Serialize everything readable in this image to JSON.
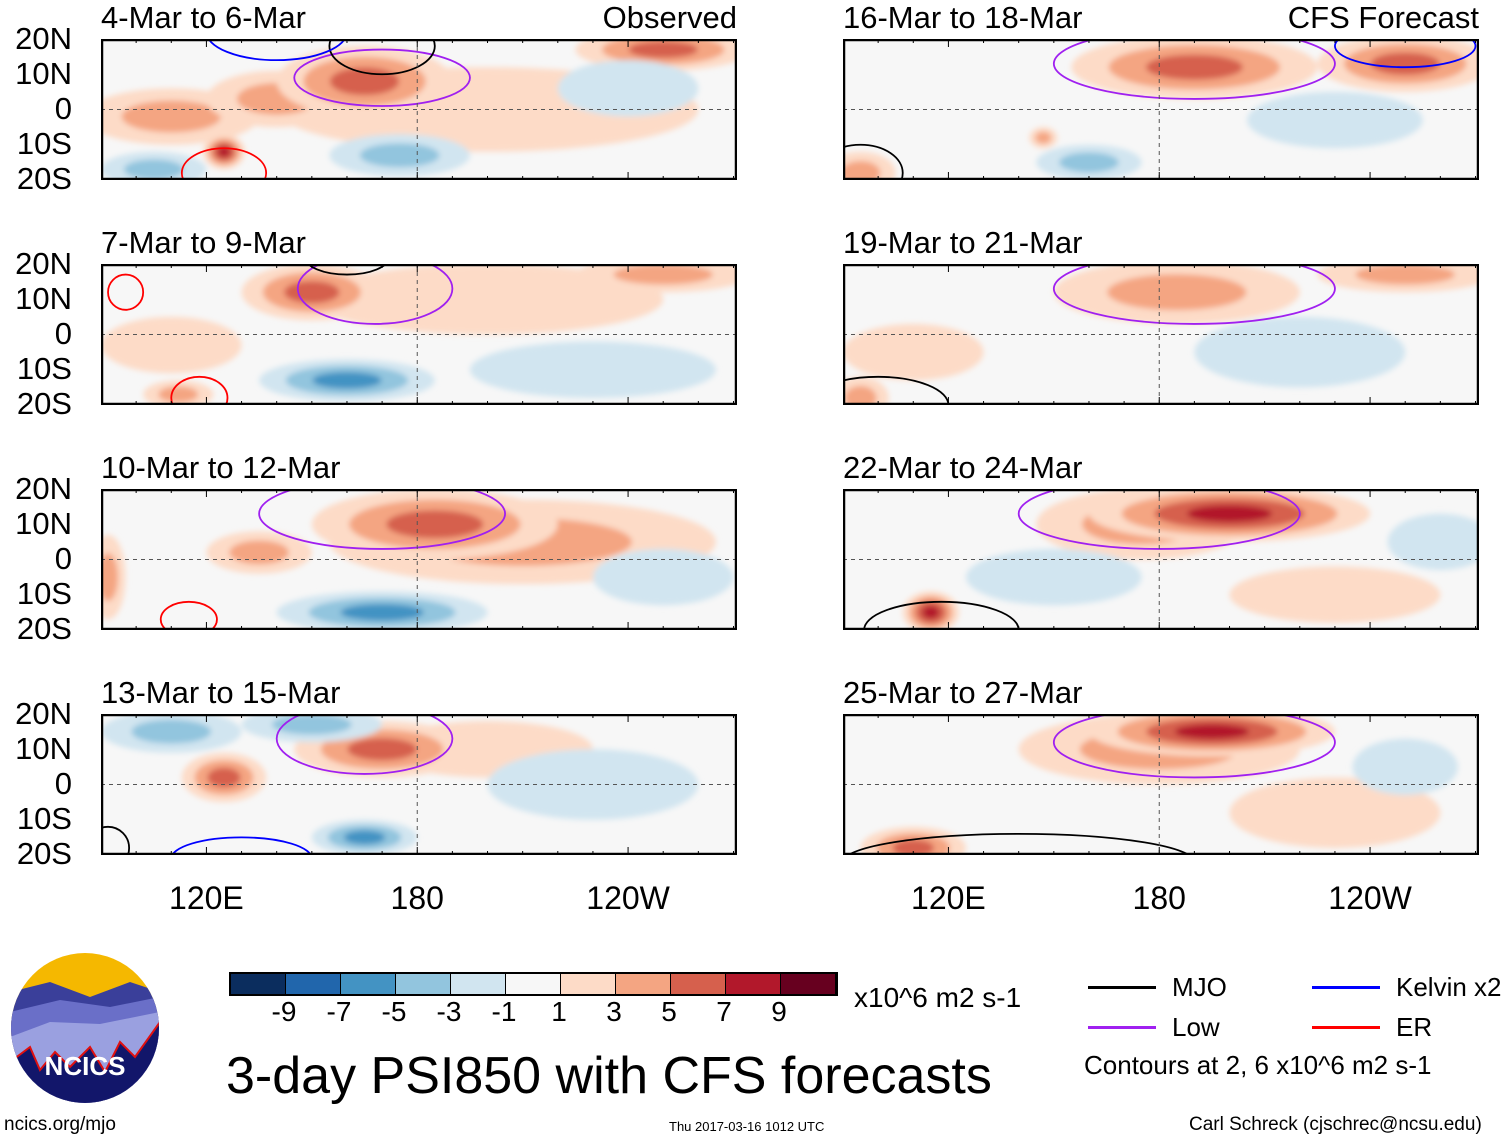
{
  "title": "3-day PSI850 with CFS forecasts",
  "colorbar": {
    "unit": "x10^6 m2 s-1",
    "labels": [
      "-9",
      "-7",
      "-5",
      "-3",
      "-1",
      "1",
      "3",
      "5",
      "7",
      "9"
    ],
    "colors": [
      "#0b2d5e",
      "#2166ac",
      "#4393c3",
      "#92c5de",
      "#d1e5f0",
      "#f7f7f7",
      "#fddbc7",
      "#f4a582",
      "#d6604d",
      "#b2182b",
      "#67001f"
    ]
  },
  "legend": {
    "items": [
      {
        "label": "MJO",
        "color": "#000000"
      },
      {
        "label": "Kelvin x2",
        "color": "#0000ff"
      },
      {
        "label": "Low",
        "color": "#a020f0"
      },
      {
        "label": "ER",
        "color": "#ff0000"
      }
    ],
    "contour_note": "Contours at 2, 6 x10^6 m2 s-1"
  },
  "footer": {
    "url": "ncics.org/mjo",
    "timestamp": "Thu 2017-03-16 1012 UTC",
    "author": "Carl Schreck (cjschrec@ncsu.edu)"
  },
  "logo": {
    "text": "NCICS"
  },
  "axes": {
    "lat_labels": [
      "20N",
      "10N",
      "0",
      "10S",
      "20S"
    ],
    "lon_labels": [
      "120E",
      "180",
      "120W"
    ],
    "lon_range": [
      90,
      271
    ],
    "lat_range": [
      -20,
      20
    ]
  },
  "columns": {
    "left_label": "Observed",
    "right_label": "CFS Forecast"
  },
  "chart_data": {
    "type": "heatmap",
    "variable": "PSI850 anomaly",
    "panels": [
      {
        "title": "4-Mar to 6-Mar",
        "source": "Observed",
        "anoms": [
          [
            200,
            0,
            60,
            12,
            2
          ],
          [
            110,
            -2,
            25,
            8,
            4
          ],
          [
            140,
            3,
            20,
            8,
            3
          ],
          [
            165,
            8,
            25,
            10,
            6
          ],
          [
            250,
            17,
            25,
            6,
            5
          ],
          [
            125,
            -12,
            6,
            5,
            8
          ],
          [
            175,
            -13,
            20,
            6,
            -4
          ],
          [
            105,
            -17,
            15,
            5,
            -3
          ],
          [
            240,
            6,
            20,
            8,
            -1
          ]
        ],
        "contours": [
          [
            "Low",
            170,
            9,
            25,
            8
          ],
          [
            "MJO",
            170,
            18,
            15,
            8
          ],
          [
            "Kelvin",
            140,
            22,
            20,
            8
          ],
          [
            "ER",
            125,
            -18,
            12,
            7
          ]
        ]
      },
      {
        "title": "7-Mar to 9-Mar",
        "source": "Observed",
        "anoms": [
          [
            200,
            10,
            50,
            10,
            2
          ],
          [
            150,
            12,
            20,
            8,
            5
          ],
          [
            250,
            17,
            25,
            5,
            4
          ],
          [
            110,
            -3,
            20,
            8,
            2
          ],
          [
            160,
            -13,
            25,
            6,
            -5
          ],
          [
            230,
            -10,
            35,
            8,
            -2
          ],
          [
            112,
            -17,
            10,
            4,
            3
          ]
        ],
        "contours": [
          [
            "Low",
            168,
            13,
            22,
            10
          ],
          [
            "ER",
            118,
            -18,
            8,
            6
          ],
          [
            "ER",
            97,
            12,
            5,
            5
          ],
          [
            "MJO",
            160,
            22,
            12,
            5
          ]
        ]
      },
      {
        "title": "10-Mar to 12-Mar",
        "source": "Observed",
        "anoms": [
          [
            210,
            5,
            55,
            12,
            3
          ],
          [
            185,
            10,
            35,
            10,
            6
          ],
          [
            135,
            2,
            15,
            6,
            3
          ],
          [
            92,
            -5,
            5,
            12,
            3
          ],
          [
            170,
            -15,
            30,
            6,
            -6
          ],
          [
            250,
            -5,
            20,
            8,
            -2
          ]
        ],
        "contours": [
          [
            "Low",
            170,
            13,
            35,
            10
          ],
          [
            "ER",
            115,
            -17,
            8,
            5
          ]
        ]
      },
      {
        "title": "13-Mar to 15-Mar",
        "source": "Observed",
        "anoms": [
          [
            200,
            10,
            30,
            8,
            2
          ],
          [
            170,
            10,
            25,
            8,
            6
          ],
          [
            125,
            2,
            12,
            7,
            5
          ],
          [
            110,
            15,
            20,
            6,
            -3
          ],
          [
            150,
            17,
            20,
            5,
            -3
          ],
          [
            165,
            -15,
            15,
            5,
            -5
          ],
          [
            230,
            0,
            30,
            10,
            -1
          ]
        ],
        "contours": [
          [
            "Low",
            165,
            13,
            25,
            10
          ],
          [
            "Kelvin",
            130,
            -21,
            20,
            6
          ],
          [
            "MJO",
            92,
            -18,
            6,
            6
          ]
        ]
      },
      {
        "title": "16-Mar to 18-Mar",
        "source": "CFS Forecast",
        "anoms": [
          [
            190,
            12,
            35,
            9,
            5
          ],
          [
            250,
            13,
            25,
            8,
            5
          ],
          [
            147,
            -8,
            4,
            3,
            3
          ],
          [
            95,
            -18,
            10,
            6,
            4
          ],
          [
            160,
            -15,
            15,
            5,
            -3
          ],
          [
            230,
            -3,
            25,
            8,
            -2
          ]
        ],
        "contours": [
          [
            "Low",
            190,
            13,
            40,
            10
          ],
          [
            "Kelvin",
            250,
            18,
            20,
            6
          ],
          [
            "MJO",
            95,
            -18,
            12,
            8
          ]
        ]
      },
      {
        "title": "19-Mar to 21-Mar",
        "source": "CFS Forecast",
        "anoms": [
          [
            185,
            12,
            35,
            9,
            4
          ],
          [
            250,
            17,
            25,
            5,
            3
          ],
          [
            110,
            -5,
            20,
            8,
            2
          ],
          [
            95,
            -18,
            8,
            6,
            3
          ],
          [
            220,
            -5,
            30,
            10,
            -2
          ]
        ],
        "contours": [
          [
            "Low",
            190,
            13,
            40,
            10
          ],
          [
            "MJO",
            100,
            -20,
            20,
            8
          ]
        ]
      },
      {
        "title": "22-Mar to 24-Mar",
        "source": "CFS Forecast",
        "anoms": [
          [
            175,
            10,
            30,
            10,
            3
          ],
          [
            230,
            -10,
            30,
            8,
            2
          ],
          [
            200,
            13,
            40,
            8,
            7
          ],
          [
            115,
            -15,
            8,
            6,
            8
          ],
          [
            150,
            -5,
            25,
            8,
            -2
          ],
          [
            260,
            5,
            15,
            8,
            -2
          ]
        ],
        "contours": [
          [
            "Low",
            180,
            13,
            40,
            10
          ],
          [
            "MJO",
            118,
            -20,
            22,
            8
          ]
        ]
      },
      {
        "title": "25-Mar to 27-Mar",
        "source": "CFS Forecast",
        "anoms": [
          [
            180,
            10,
            40,
            10,
            3
          ],
          [
            230,
            -8,
            30,
            10,
            2
          ],
          [
            195,
            15,
            35,
            7,
            7
          ],
          [
            110,
            -18,
            15,
            6,
            5
          ],
          [
            250,
            5,
            15,
            8,
            -2
          ]
        ],
        "contours": [
          [
            "Low",
            190,
            12,
            40,
            10
          ],
          [
            "MJO",
            140,
            -22,
            50,
            8
          ]
        ]
      }
    ]
  }
}
